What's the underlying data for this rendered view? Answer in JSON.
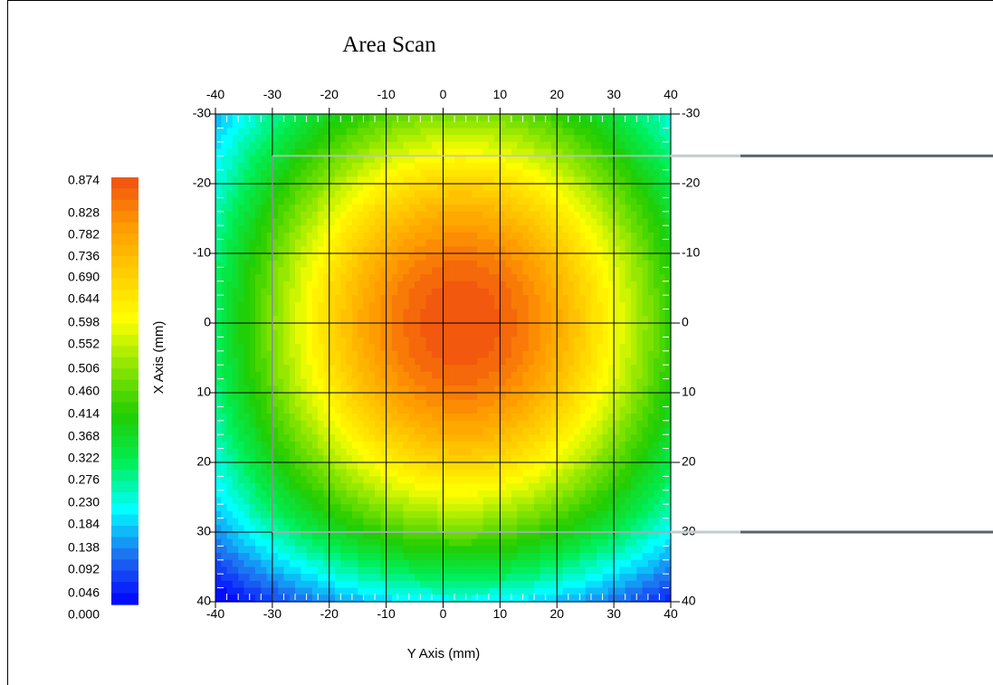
{
  "chart_data": {
    "type": "heatmap",
    "title": "Area Scan",
    "xlabel": "Y Axis (mm)",
    "ylabel": "X Axis (mm)",
    "x_range": [
      -40,
      40
    ],
    "y_range": [
      -30,
      40
    ],
    "x_ticks": [
      "-40",
      "-30",
      "-20",
      "-10",
      "0",
      "10",
      "20",
      "30",
      "40"
    ],
    "y_ticks": [
      "-30",
      "-20",
      "-10",
      "0",
      "10",
      "20",
      "30",
      "40"
    ],
    "grid": true,
    "peak": {
      "x": 3,
      "y": 0,
      "value": 0.874
    },
    "falloff": {
      "sx": 30,
      "sy": 27,
      "offset_x": 28,
      "offset_y": 22
    },
    "colorbar": {
      "labels": [
        "0.874",
        "0.828",
        "0.782",
        "0.736",
        "0.690",
        "0.644",
        "0.598",
        "0.552",
        "0.506",
        "0.460",
        "0.414",
        "0.368",
        "0.322",
        "0.276",
        "0.230",
        "0.184",
        "0.138",
        "0.092",
        "0.046",
        "0.000"
      ],
      "min": 0.0,
      "max": 0.874,
      "levels": 38,
      "color_stops": [
        "#0000ff",
        "#1e6cf0",
        "#00ffff",
        "#00ee55",
        "#22cc00",
        "#8ce600",
        "#ffff00",
        "#ffcc00",
        "#ff9900",
        "#f04f10"
      ]
    },
    "reference_lines": [
      "-24",
      "30"
    ]
  }
}
